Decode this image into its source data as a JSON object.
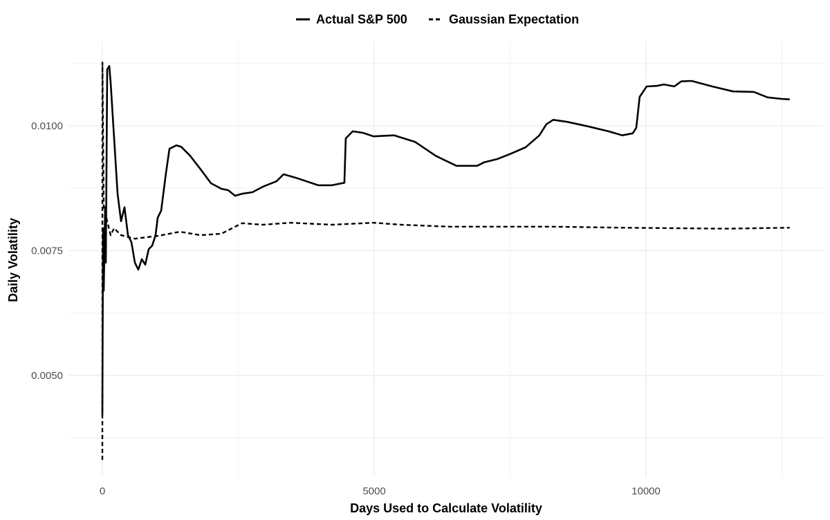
{
  "chart_data": {
    "type": "line",
    "title": "",
    "xlabel": "Days Used to Calculate Volatility",
    "ylabel": "Daily Volatility",
    "xlim": [
      -600,
      13300
    ],
    "ylim": [
      0.00335,
      0.0113
    ],
    "x_ticks": [
      0,
      5000,
      10000
    ],
    "x_tick_labels": [
      "0",
      "5000",
      "10000"
    ],
    "y_ticks": [
      0.005,
      0.0075,
      0.01
    ],
    "y_tick_labels": [
      "0.0050",
      "0.0075",
      "0.0100"
    ],
    "grid": true,
    "legend_position": "top",
    "series": [
      {
        "name": "Actual S&P 500",
        "line_style": "solid",
        "color": "#000000",
        "x": [
          0,
          13,
          25,
          51,
          64,
          89,
          127,
          153,
          216,
          280,
          343,
          407,
          471,
          534,
          598,
          661,
          725,
          789,
          852,
          916,
          979,
          1018,
          1081,
          1170,
          1234,
          1361,
          1450,
          1615,
          1806,
          1997,
          2188,
          2315,
          2442,
          2569,
          2760,
          2951,
          3205,
          3333,
          3587,
          3969,
          4223,
          4452,
          4477,
          4605,
          4795,
          4986,
          5368,
          5749,
          6131,
          6513,
          6894,
          7021,
          7276,
          7530,
          7785,
          8039,
          8166,
          8293,
          8548,
          8929,
          9311,
          9565,
          9756,
          9820,
          9883,
          10011,
          10201,
          10329,
          10519,
          10647,
          10837,
          11219,
          11601,
          11982,
          12237,
          12491,
          12644
        ],
        "y": [
          0.00421,
          0.00795,
          0.0067,
          0.00837,
          0.00726,
          0.01113,
          0.0112,
          0.01086,
          0.00975,
          0.00864,
          0.00809,
          0.00837,
          0.00781,
          0.00767,
          0.00726,
          0.00712,
          0.00733,
          0.00722,
          0.00753,
          0.0076,
          0.00781,
          0.00816,
          0.0083,
          0.00906,
          0.00954,
          0.00961,
          0.00958,
          0.0094,
          0.00913,
          0.00885,
          0.00874,
          0.00871,
          0.0086,
          0.00864,
          0.00867,
          0.00878,
          0.00889,
          0.00903,
          0.00895,
          0.00881,
          0.00881,
          0.00886,
          0.00975,
          0.00989,
          0.00986,
          0.00979,
          0.00981,
          0.00968,
          0.0094,
          0.0092,
          0.0092,
          0.00927,
          0.00934,
          0.00945,
          0.00957,
          0.00981,
          0.01003,
          0.01012,
          0.01008,
          0.00999,
          0.00989,
          0.00981,
          0.00985,
          0.00996,
          0.01058,
          0.01079,
          0.0108,
          0.01083,
          0.01079,
          0.01089,
          0.0109,
          0.01079,
          0.01069,
          0.01068,
          0.01057,
          0.01054,
          0.01053
        ]
      },
      {
        "name": "Gaussian Expectation",
        "line_style": "dashed",
        "color": "#000000",
        "x": [
          0,
          1,
          25,
          89,
          153,
          216,
          343,
          598,
          1043,
          1424,
          1806,
          2188,
          2569,
          2951,
          3460,
          4223,
          4986,
          5495,
          6386,
          8293,
          9565,
          11473,
          12644
        ],
        "y": [
          0.00331,
          0.01127,
          0.00837,
          0.00809,
          0.00781,
          0.00795,
          0.00781,
          0.00774,
          0.0078,
          0.00788,
          0.00781,
          0.00784,
          0.00805,
          0.00802,
          0.00806,
          0.00802,
          0.00806,
          0.00802,
          0.00798,
          0.00798,
          0.00796,
          0.00794,
          0.00796
        ]
      }
    ]
  }
}
